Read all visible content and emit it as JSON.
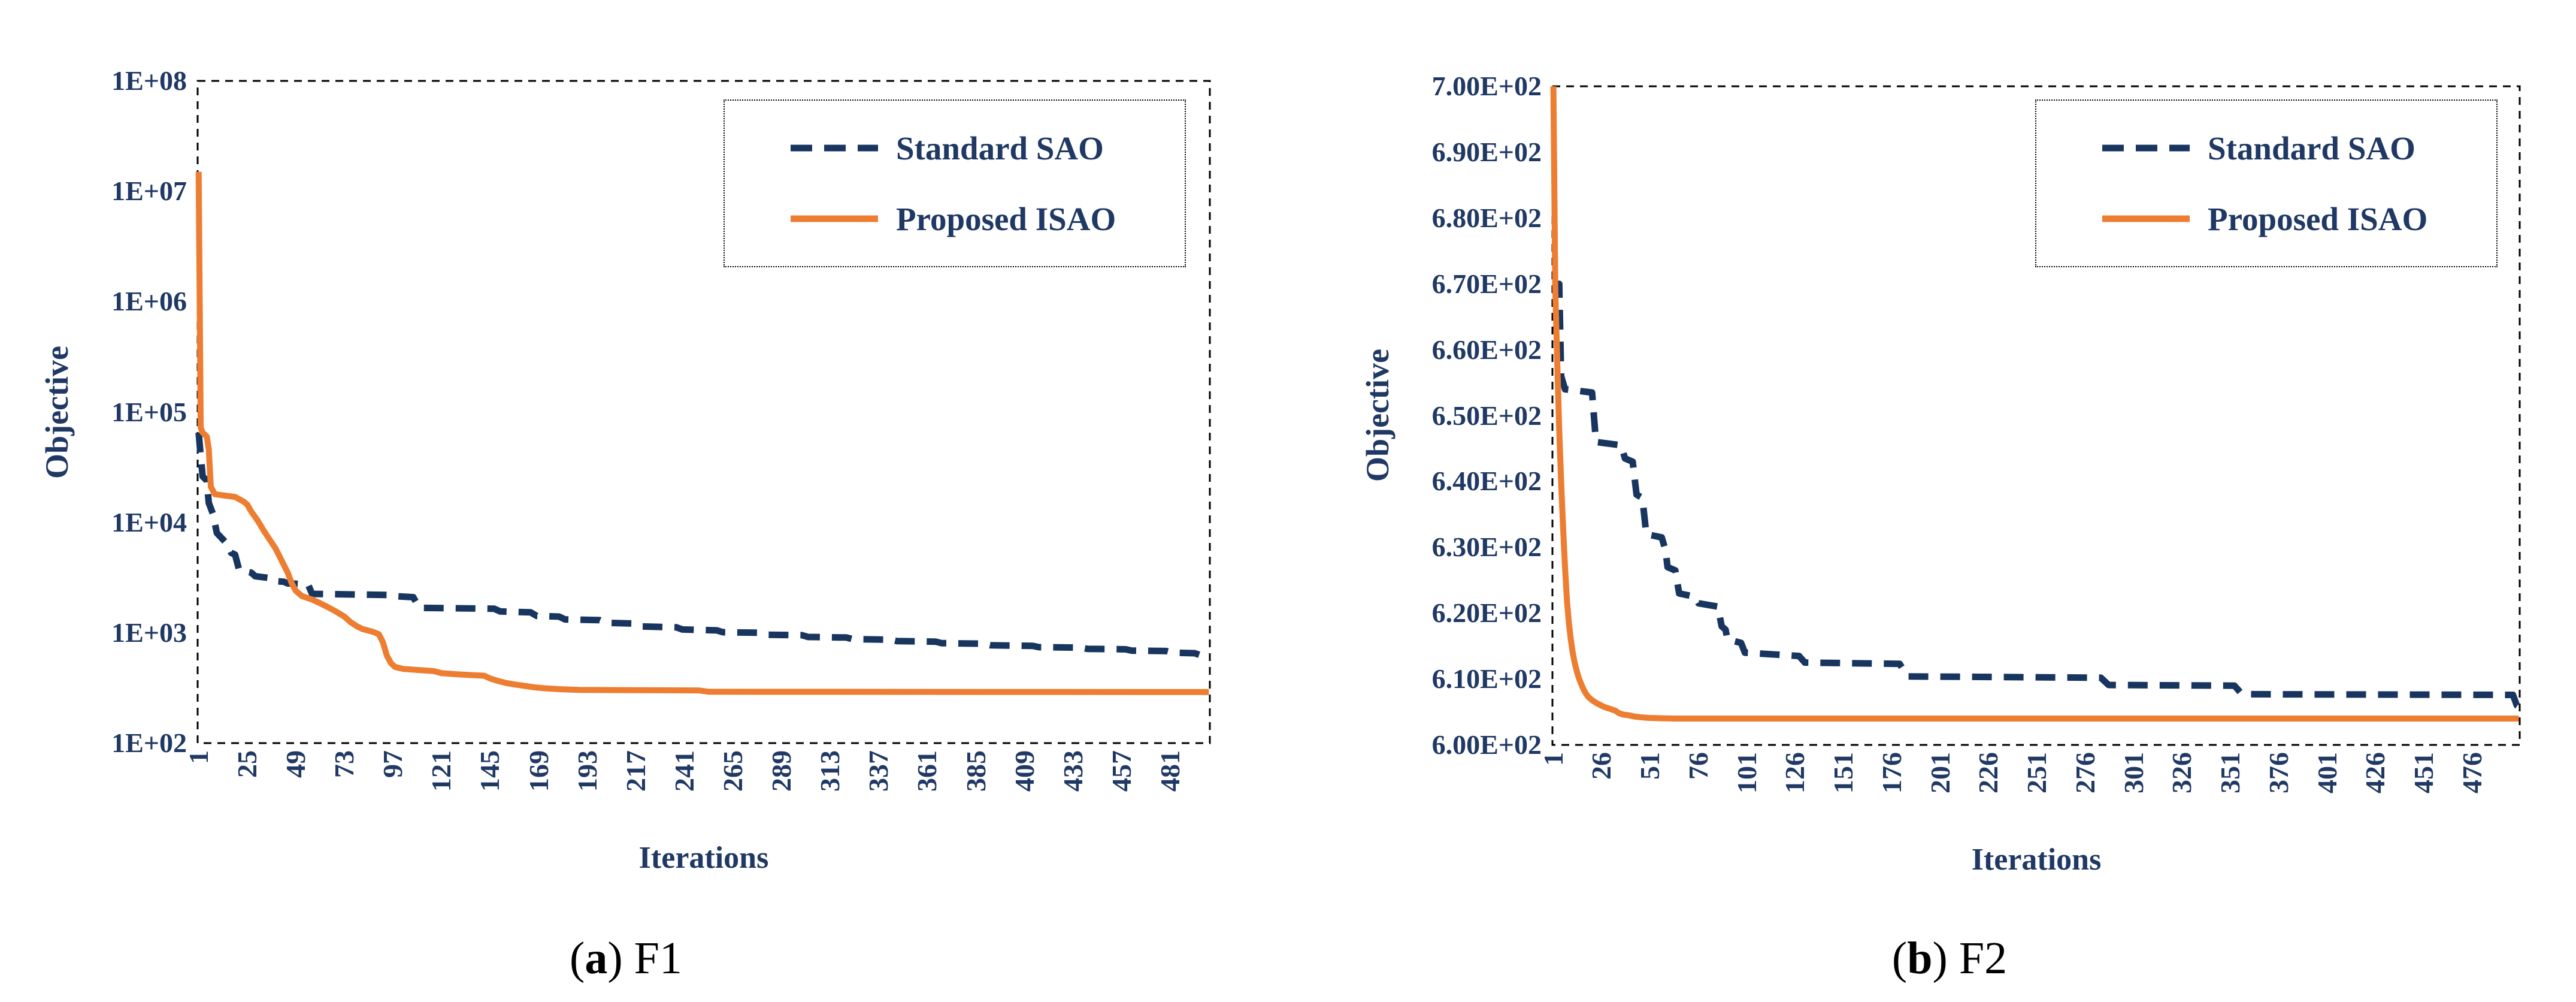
{
  "page": {
    "background": "#ffffff"
  },
  "palette": {
    "navy": "#17355f",
    "orange": "#ed7d31",
    "text_navy": "#1f3864",
    "caption_color": "#000000",
    "border_color": "#000000"
  },
  "chart_data": [
    {
      "type": "line",
      "panel": "a",
      "caption": {
        "open": "(",
        "letter": "a",
        "close": ")",
        "name": "F1"
      },
      "xlabel": "Iterations",
      "ylabel": "Objective",
      "x_axis": {
        "min": 1,
        "max": 500,
        "ticks": [
          1,
          25,
          49,
          73,
          97,
          121,
          145,
          169,
          193,
          217,
          241,
          265,
          289,
          313,
          337,
          361,
          385,
          409,
          433,
          457,
          481
        ]
      },
      "y_axis": {
        "scale": "log",
        "min": 100,
        "max": 100000000,
        "ticks": [
          {
            "label": "1E+08",
            "value": 100000000
          },
          {
            "label": "1E+07",
            "value": 10000000
          },
          {
            "label": "1E+06",
            "value": 1000000
          },
          {
            "label": "1E+05",
            "value": 100000
          },
          {
            "label": "1E+04",
            "value": 10000
          },
          {
            "label": "1E+03",
            "value": 1000
          },
          {
            "label": "1E+02",
            "value": 100
          }
        ]
      },
      "legend": {
        "position": "top-right"
      },
      "series": [
        {
          "name": "Standard SAO",
          "color": "#17355f",
          "dash": "dashed",
          "points": [
            [
              1,
              65000
            ],
            [
              2,
              40000
            ],
            [
              3,
              26000
            ],
            [
              5,
              24000
            ],
            [
              6,
              15000
            ],
            [
              8,
              12000
            ],
            [
              10,
              8000
            ],
            [
              13,
              7000
            ],
            [
              15,
              6400
            ],
            [
              17,
              5300
            ],
            [
              19,
              5100
            ],
            [
              21,
              3700
            ],
            [
              27,
              3500
            ],
            [
              29,
              3250
            ],
            [
              35,
              3150
            ],
            [
              37,
              2950
            ],
            [
              43,
              2900
            ],
            [
              45,
              2800
            ],
            [
              55,
              2750
            ],
            [
              57,
              2250
            ],
            [
              95,
              2200
            ],
            [
              97,
              2150
            ],
            [
              107,
              2100
            ],
            [
              110,
              1680
            ],
            [
              147,
              1650
            ],
            [
              150,
              1560
            ],
            [
              165,
              1530
            ],
            [
              168,
              1420
            ],
            [
              179,
              1400
            ],
            [
              182,
              1320
            ],
            [
              199,
              1300
            ],
            [
              202,
              1230
            ],
            [
              217,
              1210
            ],
            [
              220,
              1140
            ],
            [
              237,
              1120
            ],
            [
              240,
              1070
            ],
            [
              257,
              1050
            ],
            [
              260,
              1010
            ],
            [
              277,
              1000
            ],
            [
              280,
              960
            ],
            [
              299,
              950
            ],
            [
              302,
              915
            ],
            [
              321,
              905
            ],
            [
              324,
              875
            ],
            [
              343,
              865
            ],
            [
              346,
              840
            ],
            [
              365,
              830
            ],
            [
              368,
              805
            ],
            [
              389,
              795
            ],
            [
              392,
              770
            ],
            [
              413,
              760
            ],
            [
              416,
              740
            ],
            [
              437,
              733
            ],
            [
              440,
              715
            ],
            [
              459,
              708
            ],
            [
              462,
              688
            ],
            [
              479,
              682
            ],
            [
              482,
              660
            ],
            [
              493,
              652
            ],
            [
              496,
              625
            ],
            [
              500,
              618
            ]
          ]
        },
        {
          "name": "Proposed ISAO",
          "color": "#ed7d31",
          "dash": "solid",
          "points": [
            [
              1,
              15000000
            ],
            [
              2,
              72000
            ],
            [
              3,
              65000
            ],
            [
              5,
              60000
            ],
            [
              6,
              46000
            ],
            [
              7,
              21000
            ],
            [
              9,
              18000
            ],
            [
              19,
              17000
            ],
            [
              23,
              15500
            ],
            [
              25,
              14500
            ],
            [
              27,
              12500
            ],
            [
              30,
              10500
            ],
            [
              33,
              8500
            ],
            [
              36,
              7000
            ],
            [
              39,
              5800
            ],
            [
              42,
              4500
            ],
            [
              45,
              3500
            ],
            [
              47,
              2800
            ],
            [
              49,
              2400
            ],
            [
              52,
              2150
            ],
            [
              57,
              2000
            ],
            [
              61,
              1850
            ],
            [
              65,
              1700
            ],
            [
              69,
              1550
            ],
            [
              73,
              1400
            ],
            [
              76,
              1250
            ],
            [
              79,
              1150
            ],
            [
              82,
              1080
            ],
            [
              87,
              1020
            ],
            [
              90,
              970
            ],
            [
              92,
              820
            ],
            [
              94,
              620
            ],
            [
              96,
              530
            ],
            [
              98,
              490
            ],
            [
              102,
              470
            ],
            [
              109,
              460
            ],
            [
              117,
              450
            ],
            [
              121,
              430
            ],
            [
              129,
              420
            ],
            [
              137,
              412
            ],
            [
              142,
              408
            ],
            [
              145,
              385
            ],
            [
              149,
              365
            ],
            [
              153,
              350
            ],
            [
              157,
              340
            ],
            [
              162,
              330
            ],
            [
              167,
              320
            ],
            [
              172,
              314
            ],
            [
              179,
              308
            ],
            [
              189,
              303
            ],
            [
              248,
              300
            ],
            [
              253,
              292
            ],
            [
              500,
              290
            ]
          ]
        }
      ]
    },
    {
      "type": "line",
      "panel": "b",
      "caption": {
        "open": "(",
        "letter": "b",
        "close": ")",
        "name": "F2"
      },
      "xlabel": "Iterations",
      "ylabel": "Objective",
      "x_axis": {
        "min": 1,
        "max": 500,
        "ticks": [
          1,
          26,
          51,
          76,
          101,
          126,
          151,
          176,
          201,
          226,
          251,
          276,
          301,
          326,
          351,
          376,
          401,
          426,
          451,
          476
        ]
      },
      "y_axis": {
        "scale": "linear",
        "min": 600,
        "max": 700,
        "ticks": [
          {
            "label": "7.00E+02",
            "value": 700
          },
          {
            "label": "6.90E+02",
            "value": 690
          },
          {
            "label": "6.80E+02",
            "value": 680
          },
          {
            "label": "6.70E+02",
            "value": 670
          },
          {
            "label": "6.60E+02",
            "value": 660
          },
          {
            "label": "6.50E+02",
            "value": 650
          },
          {
            "label": "6.40E+02",
            "value": 640
          },
          {
            "label": "6.30E+02",
            "value": 630
          },
          {
            "label": "6.20E+02",
            "value": 620
          },
          {
            "label": "6.10E+02",
            "value": 610
          },
          {
            "label": "6.00E+02",
            "value": 600
          }
        ]
      },
      "legend": {
        "position": "top-right"
      },
      "series": [
        {
          "name": "Standard SAO",
          "color": "#17355f",
          "dash": "dashed",
          "points": [
            [
              1,
              670
            ],
            [
              4,
              670
            ],
            [
              5,
              656
            ],
            [
              7,
              654
            ],
            [
              21,
              653.5
            ],
            [
              23,
              646
            ],
            [
              36,
              645.5
            ],
            [
              38,
              643.5
            ],
            [
              42,
              643
            ],
            [
              44,
              638
            ],
            [
              47,
              637.5
            ],
            [
              49,
              632
            ],
            [
              57,
              631.5
            ],
            [
              59,
              629.5
            ],
            [
              60,
              627
            ],
            [
              64,
              626.5
            ],
            [
              66,
              623
            ],
            [
              74,
              622.5
            ],
            [
              76,
              621.5
            ],
            [
              86,
              621
            ],
            [
              88,
              618
            ],
            [
              90,
              617.5
            ],
            [
              91,
              616
            ],
            [
              98,
              615.5
            ],
            [
              100,
              614
            ],
            [
              128,
              613.5
            ],
            [
              131,
              612.5
            ],
            [
              180,
              612.3
            ],
            [
              184,
              610.4
            ],
            [
              284,
              610.2
            ],
            [
              288,
              609.1
            ],
            [
              353,
              609
            ],
            [
              357,
              607.7
            ],
            [
              497,
              607.6
            ],
            [
              499,
              606
            ],
            [
              500,
              605.8
            ]
          ]
        },
        {
          "name": "Proposed ISAO",
          "color": "#ed7d31",
          "dash": "solid",
          "points": [
            [
              1,
              700
            ],
            [
              2,
              669
            ],
            [
              3,
              658
            ],
            [
              4,
              648
            ],
            [
              5,
              640
            ],
            [
              6,
              633
            ],
            [
              7,
              627
            ],
            [
              8,
              622
            ],
            [
              9,
              618.5
            ],
            [
              10,
              616
            ],
            [
              11,
              614
            ],
            [
              12,
              612.5
            ],
            [
              13,
              611.3
            ],
            [
              14,
              610.3
            ],
            [
              15,
              609.5
            ],
            [
              16,
              608.8
            ],
            [
              17,
              608.2
            ],
            [
              18,
              607.7
            ],
            [
              19,
              607.3
            ],
            [
              21,
              606.8
            ],
            [
              23,
              606.4
            ],
            [
              25,
              606.1
            ],
            [
              27,
              605.8
            ],
            [
              29,
              605.6
            ],
            [
              31,
              605.4
            ],
            [
              33,
              605.2
            ],
            [
              35,
              604.8
            ],
            [
              37,
              604.6
            ],
            [
              40,
              604.5
            ],
            [
              43,
              604.3
            ],
            [
              46,
              604.2
            ],
            [
              50,
              604.1
            ],
            [
              56,
              604.05
            ],
            [
              64,
              604
            ],
            [
              500,
              604
            ]
          ]
        }
      ]
    }
  ]
}
